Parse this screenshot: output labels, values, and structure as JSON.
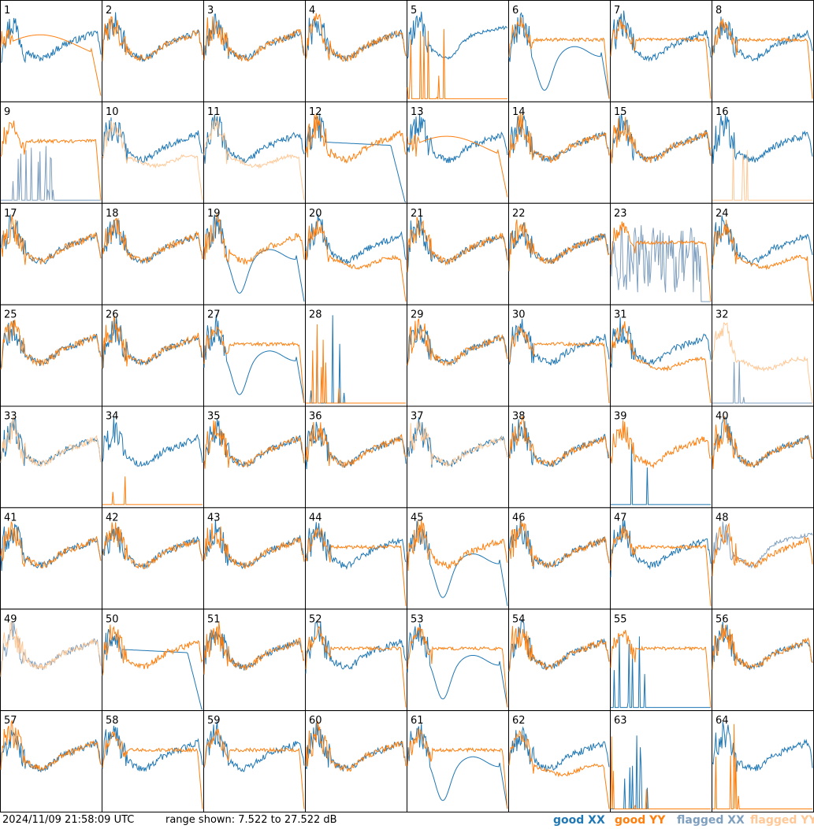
{
  "chart_data": {
    "type": "line",
    "grid_rows": 8,
    "grid_cols": 8,
    "range_db": [
      7.522,
      27.522
    ],
    "colors": {
      "good_xx": "#1f77b4",
      "good_yy": "#ff7f0e",
      "flagged_xx": "#7f9fbf",
      "flagged_yy": "#ffc896"
    },
    "tiles": [
      {
        "id": "1",
        "xx": [
          "g",
          "std"
        ],
        "yy": [
          "g",
          "drop"
        ]
      },
      {
        "id": "2",
        "xx": [
          "g",
          "std"
        ],
        "yy": [
          "g",
          "std"
        ]
      },
      {
        "id": "3",
        "xx": [
          "g",
          "std"
        ],
        "yy": [
          "g",
          "std"
        ]
      },
      {
        "id": "4",
        "xx": [
          "g",
          "std"
        ],
        "yy": [
          "g",
          "std"
        ]
      },
      {
        "id": "5",
        "xx": [
          "g",
          "sag"
        ],
        "yy": [
          "g",
          "dead"
        ]
      },
      {
        "id": "6",
        "xx": [
          "g",
          "dip"
        ],
        "yy": [
          "g",
          "flat"
        ]
      },
      {
        "id": "7",
        "xx": [
          "g",
          "std"
        ],
        "yy": [
          "g",
          "flat"
        ]
      },
      {
        "id": "8",
        "xx": [
          "g",
          "std"
        ],
        "yy": [
          "g",
          "flat"
        ]
      },
      {
        "id": "9",
        "xx": [
          "f",
          "spikes"
        ],
        "yy": [
          "g",
          "flat"
        ]
      },
      {
        "id": "10",
        "xx": [
          "g",
          "std"
        ],
        "yy": [
          "f",
          "low"
        ]
      },
      {
        "id": "11",
        "xx": [
          "g",
          "std"
        ],
        "yy": [
          "f",
          "low"
        ]
      },
      {
        "id": "12",
        "xx": [
          "g",
          "fall"
        ],
        "yy": [
          "g",
          "std"
        ]
      },
      {
        "id": "13",
        "xx": [
          "g",
          "std"
        ],
        "yy": [
          "g",
          "drop"
        ]
      },
      {
        "id": "14",
        "xx": [
          "g",
          "std"
        ],
        "yy": [
          "g",
          "std"
        ]
      },
      {
        "id": "15",
        "xx": [
          "g",
          "std"
        ],
        "yy": [
          "g",
          "std"
        ]
      },
      {
        "id": "16",
        "xx": [
          "g",
          "std"
        ],
        "yy": [
          "f",
          "dead"
        ]
      },
      {
        "id": "17",
        "xx": [
          "g",
          "std"
        ],
        "yy": [
          "g",
          "std"
        ]
      },
      {
        "id": "18",
        "xx": [
          "g",
          "std"
        ],
        "yy": [
          "g",
          "std"
        ]
      },
      {
        "id": "19",
        "xx": [
          "g",
          "dip"
        ],
        "yy": [
          "g",
          "std"
        ]
      },
      {
        "id": "20",
        "xx": [
          "g",
          "std"
        ],
        "yy": [
          "g",
          "low"
        ]
      },
      {
        "id": "21",
        "xx": [
          "g",
          "std"
        ],
        "yy": [
          "g",
          "std"
        ]
      },
      {
        "id": "22",
        "xx": [
          "g",
          "std"
        ],
        "yy": [
          "g",
          "std"
        ]
      },
      {
        "id": "23",
        "xx": [
          "f",
          "noise"
        ],
        "yy": [
          "g",
          "flat"
        ]
      },
      {
        "id": "24",
        "xx": [
          "g",
          "std"
        ],
        "yy": [
          "g",
          "low"
        ]
      },
      {
        "id": "25",
        "xx": [
          "g",
          "std"
        ],
        "yy": [
          "g",
          "std"
        ]
      },
      {
        "id": "26",
        "xx": [
          "g",
          "std"
        ],
        "yy": [
          "g",
          "std"
        ]
      },
      {
        "id": "27",
        "xx": [
          "g",
          "dip"
        ],
        "yy": [
          "g",
          "flat"
        ]
      },
      {
        "id": "28",
        "xx": [
          "g",
          "dead"
        ],
        "yy": [
          "g",
          "dead"
        ]
      },
      {
        "id": "29",
        "xx": [
          "g",
          "std"
        ],
        "yy": [
          "g",
          "std"
        ]
      },
      {
        "id": "30",
        "xx": [
          "g",
          "std"
        ],
        "yy": [
          "g",
          "flat"
        ]
      },
      {
        "id": "31",
        "xx": [
          "g",
          "std"
        ],
        "yy": [
          "g",
          "low"
        ]
      },
      {
        "id": "32",
        "xx": [
          "f",
          "dead"
        ],
        "yy": [
          "f",
          "low"
        ]
      },
      {
        "id": "33",
        "xx": [
          "g",
          "std"
        ],
        "yy": [
          "f",
          "std"
        ]
      },
      {
        "id": "34",
        "xx": [
          "g",
          "std"
        ],
        "yy": [
          "g",
          "dead"
        ]
      },
      {
        "id": "35",
        "xx": [
          "g",
          "std"
        ],
        "yy": [
          "g",
          "std"
        ]
      },
      {
        "id": "36",
        "xx": [
          "g",
          "std"
        ],
        "yy": [
          "g",
          "std"
        ]
      },
      {
        "id": "37",
        "xx": [
          "g",
          "std"
        ],
        "yy": [
          "f",
          "std"
        ]
      },
      {
        "id": "38",
        "xx": [
          "g",
          "std"
        ],
        "yy": [
          "g",
          "std"
        ]
      },
      {
        "id": "39",
        "xx": [
          "g",
          "dead"
        ],
        "yy": [
          "g",
          "std"
        ]
      },
      {
        "id": "40",
        "xx": [
          "g",
          "std"
        ],
        "yy": [
          "g",
          "std"
        ]
      },
      {
        "id": "41",
        "xx": [
          "g",
          "std"
        ],
        "yy": [
          "g",
          "std"
        ]
      },
      {
        "id": "42",
        "xx": [
          "g",
          "std"
        ],
        "yy": [
          "g",
          "std"
        ]
      },
      {
        "id": "43",
        "xx": [
          "g",
          "std"
        ],
        "yy": [
          "g",
          "std"
        ]
      },
      {
        "id": "44",
        "xx": [
          "g",
          "std"
        ],
        "yy": [
          "g",
          "flat"
        ]
      },
      {
        "id": "45",
        "xx": [
          "g",
          "dip"
        ],
        "yy": [
          "g",
          "std"
        ]
      },
      {
        "id": "46",
        "xx": [
          "g",
          "std"
        ],
        "yy": [
          "g",
          "std"
        ]
      },
      {
        "id": "47",
        "xx": [
          "g",
          "std"
        ],
        "yy": [
          "g",
          "flat"
        ]
      },
      {
        "id": "48",
        "xx": [
          "f",
          "sag"
        ],
        "yy": [
          "g",
          "std"
        ]
      },
      {
        "id": "49",
        "xx": [
          "f",
          "std"
        ],
        "yy": [
          "f",
          "std"
        ]
      },
      {
        "id": "50",
        "xx": [
          "g",
          "fall"
        ],
        "yy": [
          "g",
          "std"
        ]
      },
      {
        "id": "51",
        "xx": [
          "g",
          "std"
        ],
        "yy": [
          "g",
          "std"
        ]
      },
      {
        "id": "52",
        "xx": [
          "g",
          "std"
        ],
        "yy": [
          "g",
          "flat"
        ]
      },
      {
        "id": "53",
        "xx": [
          "g",
          "dip"
        ],
        "yy": [
          "g",
          "flat"
        ]
      },
      {
        "id": "54",
        "xx": [
          "g",
          "std"
        ],
        "yy": [
          "g",
          "std"
        ]
      },
      {
        "id": "55",
        "xx": [
          "g",
          "dead"
        ],
        "yy": [
          "g",
          "flat"
        ]
      },
      {
        "id": "56",
        "xx": [
          "g",
          "std"
        ],
        "yy": [
          "g",
          "std"
        ]
      },
      {
        "id": "57",
        "xx": [
          "g",
          "std"
        ],
        "yy": [
          "g",
          "std"
        ]
      },
      {
        "id": "58",
        "xx": [
          "g",
          "std"
        ],
        "yy": [
          "g",
          "flat"
        ]
      },
      {
        "id": "59",
        "xx": [
          "g",
          "std"
        ],
        "yy": [
          "g",
          "flat"
        ]
      },
      {
        "id": "60",
        "xx": [
          "g",
          "std"
        ],
        "yy": [
          "g",
          "std"
        ]
      },
      {
        "id": "61",
        "xx": [
          "g",
          "dip"
        ],
        "yy": [
          "g",
          "flat"
        ]
      },
      {
        "id": "62",
        "xx": [
          "g",
          "std"
        ],
        "yy": [
          "g",
          "low"
        ]
      },
      {
        "id": "63",
        "xx": [
          "g",
          "dead"
        ],
        "yy": [
          "g",
          "dead"
        ]
      },
      {
        "id": "64",
        "xx": [
          "g",
          "std"
        ],
        "yy": [
          "g",
          "dead"
        ]
      }
    ]
  },
  "footer": {
    "timestamp": "2024/11/09 21:58:09 UTC",
    "range_text": "range shown: 7.522 to 27.522 dB",
    "legend": {
      "good_xx": "good XX",
      "good_yy": "good YY",
      "flagged_xx": "flagged XX",
      "flagged_yy": "flagged YY"
    }
  }
}
